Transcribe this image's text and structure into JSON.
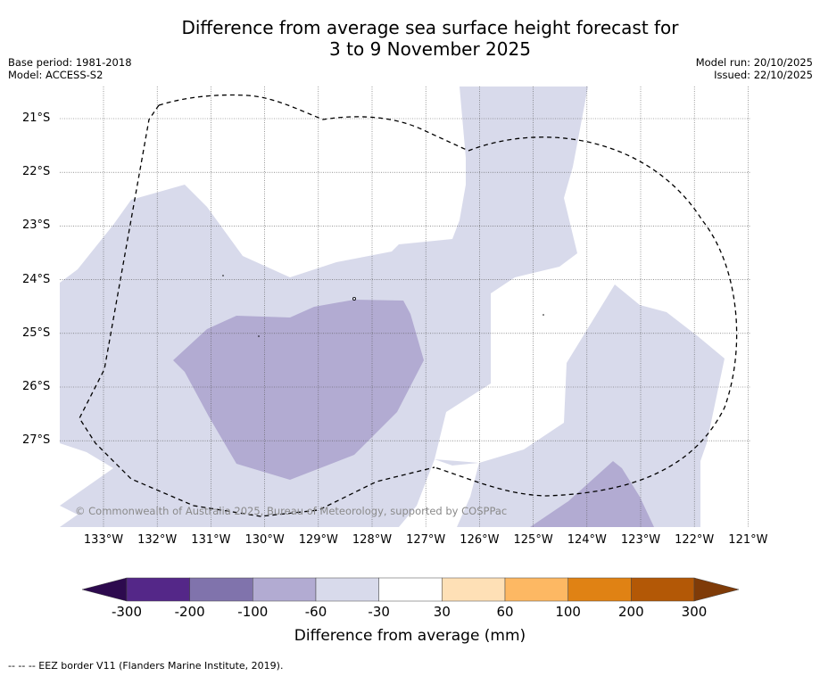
{
  "title": {
    "line1": "Difference from average sea surface height forecast for",
    "line2": "3 to 9 November 2025"
  },
  "meta": {
    "base_period": "Base period: 1981-2018",
    "model": "Model: ACCESS-S2",
    "model_run": "Model run: 20/10/2025",
    "issued": "Issued: 22/10/2025"
  },
  "map": {
    "lat_labels": [
      "21°S",
      "22°S",
      "23°S",
      "24°S",
      "25°S",
      "26°S",
      "27°S"
    ],
    "lon_labels": [
      "133°W",
      "132°W",
      "131°W",
      "130°W",
      "129°W",
      "128°W",
      "127°W",
      "126°W",
      "125°W",
      "124°W",
      "123°W",
      "122°W",
      "121°W"
    ],
    "copyright": "© Commonwealth of Australia 2025, Bureau of Meteorology, supported by COSPPac"
  },
  "colorbar": {
    "labels": [
      "-300",
      "-200",
      "-100",
      "-60",
      "-30",
      "30",
      "60",
      "100",
      "200",
      "300"
    ],
    "title": "Difference from average (mm)",
    "under_color": "#2d0a4e",
    "over_color": "#7f3b08",
    "colors": [
      "#542788",
      "#8073ac",
      "#b2abd2",
      "#d8daeb",
      "#ffffff",
      "#fee0b6",
      "#fdb863",
      "#e08214",
      "#b35806"
    ]
  },
  "footnote": "--  --  -- EEZ border V11 (Flanders Marine Institute, 2019)."
}
